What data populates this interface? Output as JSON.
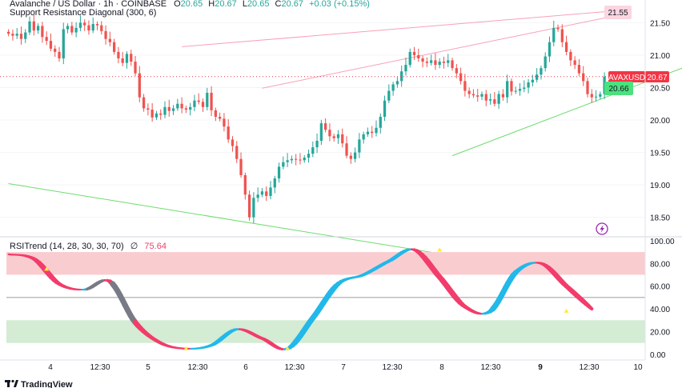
{
  "header": {
    "symbol_line": "Avalanche / US Dollar · 1h · COINBASE",
    "ohlc": {
      "o_label": "O",
      "o": "20.65",
      "h_label": "H",
      "h": "20.67",
      "l_label": "L",
      "l": "20.65",
      "c_label": "C",
      "c": "20.67",
      "change": "+0.03 (+0.15%)"
    },
    "indicator_1": "Support Resistance Diagonal (300, 6)",
    "indicator_2_name": "RSITrend (14, 28, 30, 30, 70)",
    "indicator_2_sep": "∅",
    "indicator_2_value": "75.64"
  },
  "price_tags": {
    "symbol": "AVAXUSD",
    "last": "20.67",
    "upper_line": "21.55",
    "lower_line": "20.66"
  },
  "colors": {
    "up": "#26a69a",
    "down": "#ef5350",
    "resistance_line": "#f7a1b8",
    "support_line": "#6fdc6f",
    "rsi_down": "#f23c6b",
    "rsi_up": "#22b8ea",
    "rsi_neutral": "#787b86",
    "overbought_zone": "#f9cdd0",
    "oversold_zone": "#d3ecd3",
    "marker_yellow": "#ffeb3b",
    "last_price": "#f23645",
    "support_tag": "#4ce07e",
    "resistance_tag": "#fbd5e0",
    "logo_icon": "#9c27b0"
  },
  "footer": {
    "brand": "TradingView",
    "logo_icon": "tradingview-logo-icon"
  },
  "chart_data": [
    {
      "type": "candlestick",
      "name": "AVAXUSD 1h",
      "y_axis": {
        "ticks": [
          18.5,
          19.0,
          19.5,
          20.0,
          20.5,
          21.0,
          21.5
        ],
        "labels": [
          "18.50",
          "19.00",
          "19.50",
          "20.00",
          "20.50",
          "21.00",
          "21.50"
        ],
        "range": [
          18.2,
          21.85
        ]
      },
      "x_axis": {
        "labels": [
          "4",
          "12:30",
          "5",
          "12:30",
          "6",
          "12:30",
          "7",
          "12:30",
          "8",
          "12:30",
          "9",
          "12:30",
          "10"
        ]
      },
      "close_series": [
        21.33,
        21.3,
        21.33,
        21.25,
        21.35,
        21.52,
        21.38,
        21.45,
        21.28,
        21.22,
        21.1,
        21.05,
        20.95,
        21.4,
        21.45,
        21.35,
        21.42,
        21.5,
        21.46,
        21.38,
        21.48,
        21.46,
        21.37,
        21.25,
        21.2,
        21.05,
        20.95,
        20.88,
        21.02,
        20.9,
        20.72,
        20.35,
        20.18,
        20.16,
        20.04,
        20.1,
        20.08,
        20.2,
        20.14,
        20.18,
        20.25,
        20.18,
        20.16,
        20.2,
        20.3,
        20.28,
        20.2,
        20.42,
        20.15,
        20.05,
        20.02,
        19.9,
        19.7,
        19.6,
        19.4,
        19.15,
        18.85,
        18.5,
        18.8,
        18.85,
        18.9,
        18.83,
        18.96,
        19.1,
        19.28,
        19.35,
        19.38,
        19.4,
        19.39,
        19.38,
        19.42,
        19.48,
        19.58,
        19.68,
        19.95,
        19.85,
        19.75,
        19.72,
        19.78,
        19.64,
        19.45,
        19.4,
        19.5,
        19.7,
        19.78,
        19.82,
        19.8,
        19.88,
        20.05,
        20.3,
        20.45,
        20.55,
        20.6,
        20.75,
        20.85,
        21.05,
        21.0,
        20.95,
        20.9,
        20.88,
        20.92,
        20.85,
        20.9,
        20.88,
        20.92,
        20.8,
        20.72,
        20.6,
        20.45,
        20.4,
        20.38,
        20.36,
        20.4,
        20.3,
        20.32,
        20.25,
        20.4,
        20.35,
        20.6,
        20.44,
        20.45,
        20.48,
        20.5,
        20.58,
        20.62,
        20.7,
        20.8,
        20.98,
        21.2,
        21.42,
        21.4,
        21.2,
        21.05,
        20.92,
        20.85,
        20.72,
        20.6,
        20.4,
        20.35,
        20.36,
        20.4,
        20.67
      ],
      "resistance_line": {
        "from": [
          41,
          21.13
        ],
        "to": [
          143,
          21.68
        ],
        "label": "21.55"
      },
      "resistance_line_2": {
        "from": [
          60,
          20.49
        ],
        "to": [
          143,
          21.6
        ]
      },
      "support_line": {
        "from": [
          105,
          19.45
        ],
        "to": [
          165,
          20.94
        ],
        "label": "20.66"
      },
      "lower_support": {
        "from": [
          0,
          19.02
        ],
        "to": [
          120,
          17.75
        ]
      }
    },
    {
      "type": "line",
      "name": "RSITrend",
      "y_axis": {
        "ticks": [
          0,
          20,
          40,
          60,
          80,
          100
        ],
        "labels": [
          "0.00",
          "20.00",
          "40.00",
          "60.00",
          "80.00",
          "100.00"
        ],
        "range": [
          -5,
          102
        ]
      },
      "overbought": [
        70,
        90
      ],
      "oversold": [
        10,
        30
      ],
      "midline": 50,
      "x": [
        0,
        6,
        12,
        18,
        24,
        30,
        36,
        42,
        48,
        54,
        60,
        66,
        72,
        78,
        84,
        90,
        96,
        102,
        108,
        114,
        120,
        126,
        132,
        138,
        144
      ],
      "values": [
        88,
        84,
        62,
        57,
        64,
        28,
        10,
        5,
        8,
        22,
        14,
        5,
        32,
        62,
        70,
        82,
        92,
        68,
        42,
        38,
        72,
        80,
        60,
        40,
        null
      ]
    }
  ]
}
